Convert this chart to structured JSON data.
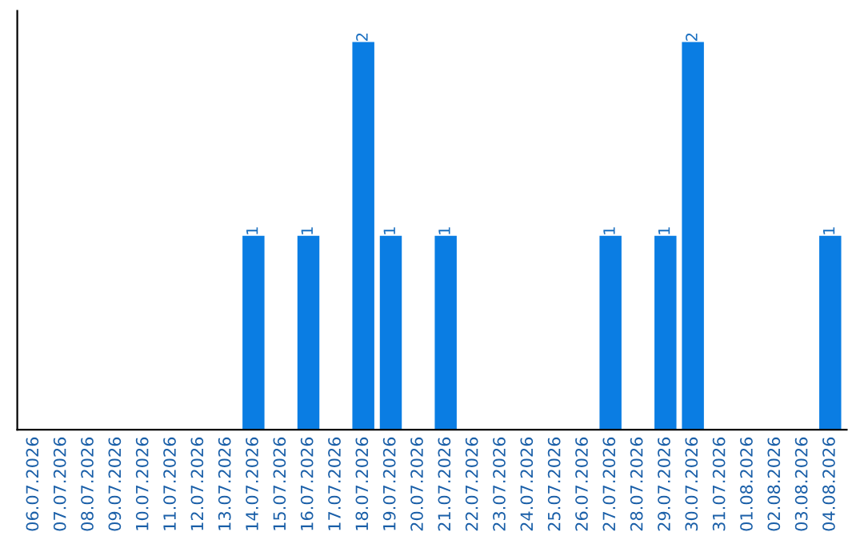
{
  "chart_data": {
    "type": "bar",
    "categories": [
      "06.07.2026",
      "07.07.2026",
      "08.07.2026",
      "09.07.2026",
      "10.07.2026",
      "11.07.2026",
      "12.07.2026",
      "13.07.2026",
      "14.07.2026",
      "15.07.2026",
      "16.07.2026",
      "17.07.2026",
      "18.07.2026",
      "19.07.2026",
      "20.07.2026",
      "21.07.2026",
      "22.07.2026",
      "23.07.2026",
      "24.07.2026",
      "25.07.2026",
      "26.07.2026",
      "27.07.2026",
      "28.07.2026",
      "29.07.2026",
      "30.07.2026",
      "31.07.2026",
      "01.08.2026",
      "02.08.2026",
      "03.08.2026",
      "04.08.2026"
    ],
    "values": [
      0,
      0,
      0,
      0,
      0,
      0,
      0,
      0,
      1,
      0,
      1,
      0,
      2,
      1,
      0,
      1,
      0,
      0,
      0,
      0,
      0,
      1,
      0,
      1,
      2,
      0,
      0,
      0,
      0,
      1
    ],
    "value_labels": [
      null,
      null,
      null,
      null,
      null,
      null,
      null,
      null,
      "1",
      null,
      "1",
      null,
      "2",
      "1",
      null,
      "1",
      null,
      null,
      null,
      null,
      null,
      "1",
      null,
      "1",
      "2",
      null,
      null,
      null,
      null,
      "1"
    ],
    "color": "#0a7de3",
    "tick_labels": "x",
    "grid": false,
    "legend": false
  }
}
